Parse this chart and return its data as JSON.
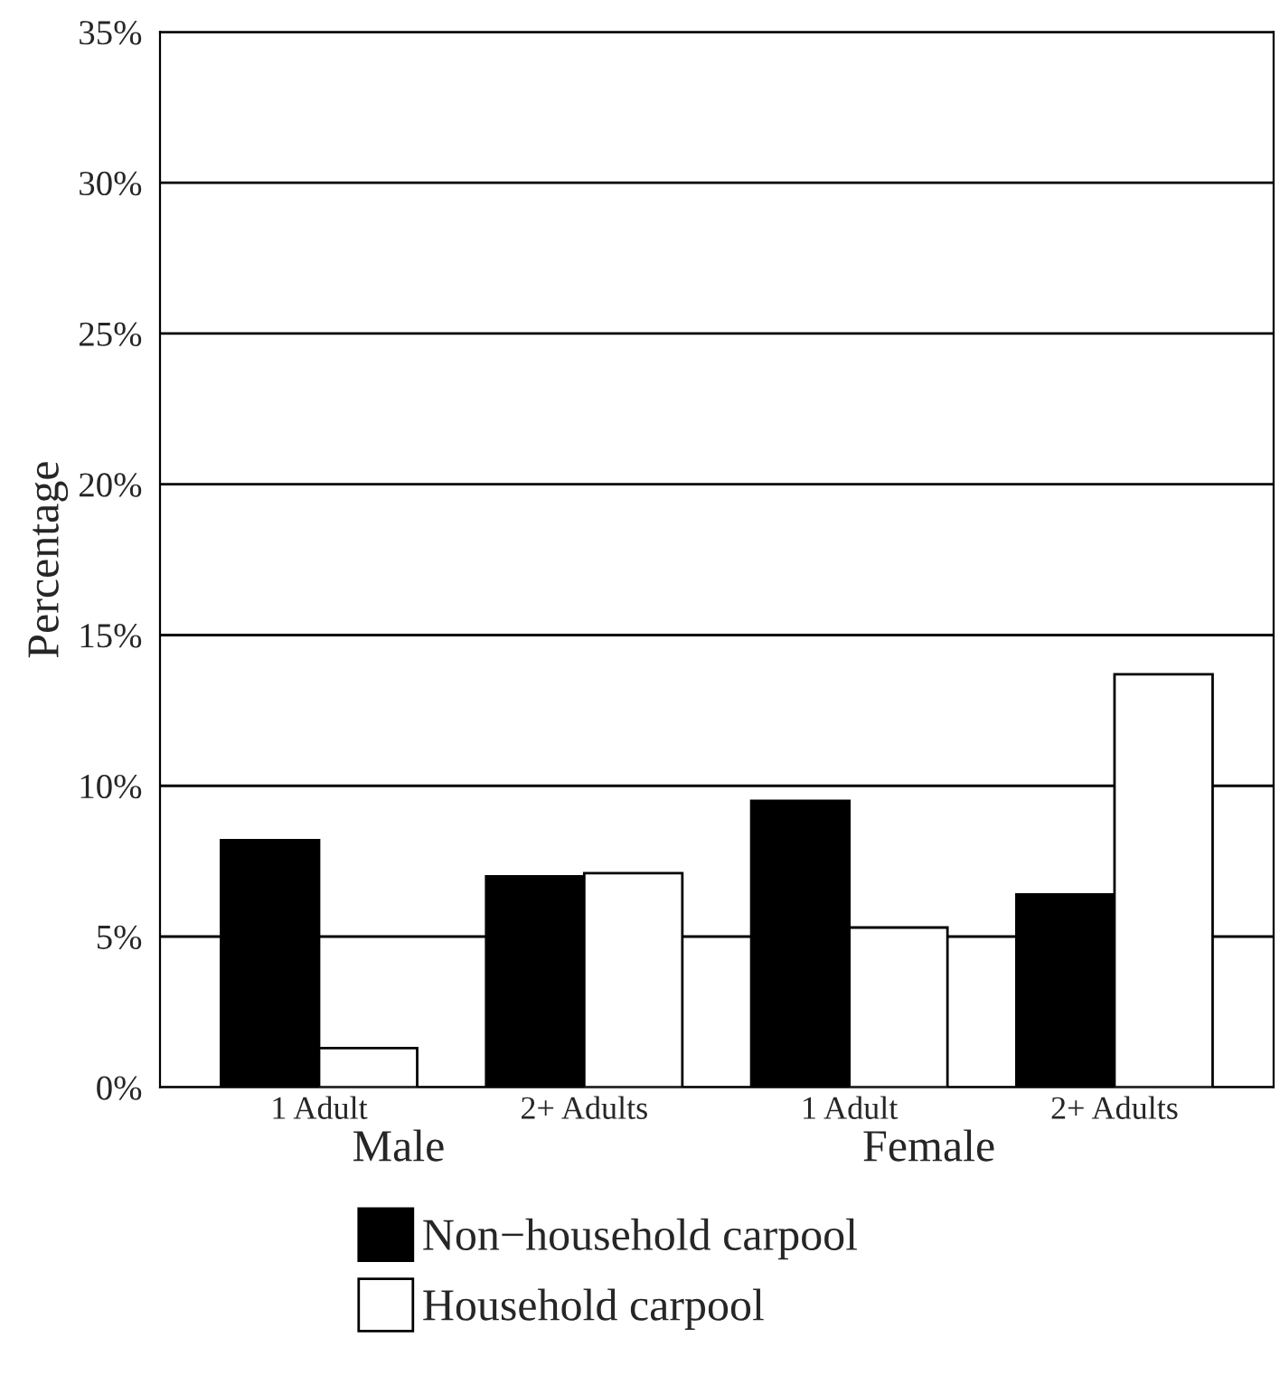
{
  "chart_data": {
    "type": "bar",
    "ylabel": "Percentage",
    "categories": [
      "1 Adult",
      "2+ Adults",
      "1 Adult",
      "2+ Adults"
    ],
    "series": [
      {
        "name": "Non−household carpool",
        "color": "#000000",
        "values": [
          8.2,
          7.0,
          9.5,
          6.4
        ]
      },
      {
        "name": "Household carpool",
        "color": "#ffffff",
        "values": [
          1.3,
          7.1,
          5.3,
          13.7
        ]
      }
    ],
    "ylim": [
      0,
      35
    ],
    "yticks": [
      {
        "value": 0,
        "label": "0%"
      },
      {
        "value": 5,
        "label": "5%"
      },
      {
        "value": 10,
        "label": "10%"
      },
      {
        "value": 15,
        "label": "15%"
      },
      {
        "value": 20,
        "label": "20%"
      },
      {
        "value": 25,
        "label": "25%"
      },
      {
        "value": 30,
        "label": "30%"
      },
      {
        "value": 35,
        "label": "35%"
      }
    ],
    "grid": "y",
    "legend": "bottom",
    "annotations": [
      "Male",
      "Female"
    ]
  }
}
